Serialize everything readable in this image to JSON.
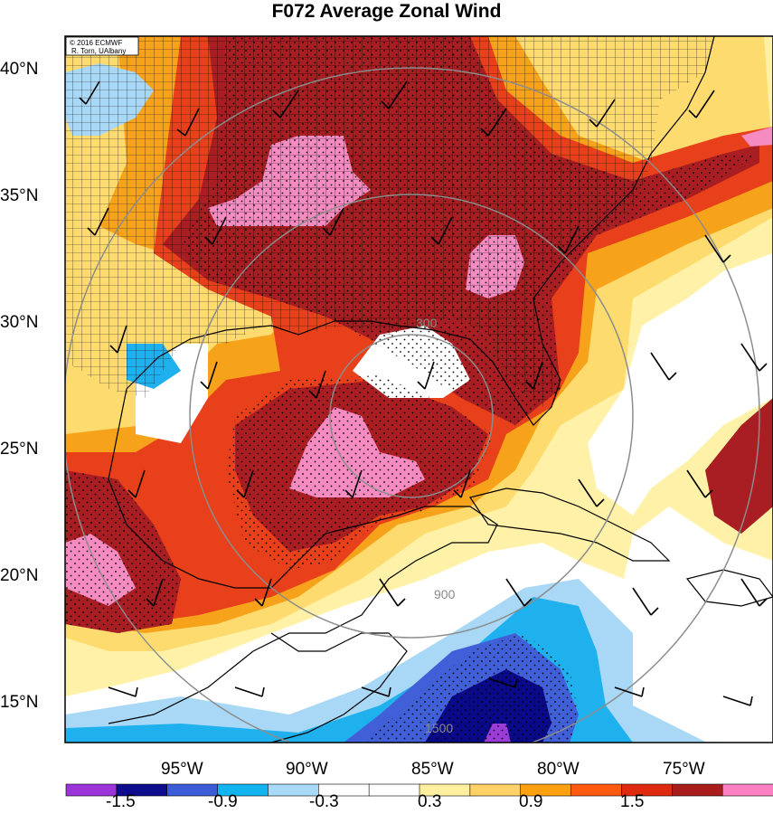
{
  "title": "F072 Average Zonal Wind",
  "credit": {
    "line1": "© 2016 ECMWF",
    "line2": "R. Torn, UAlbany"
  },
  "lat_labels": [
    "40°N",
    "35°N",
    "30°N",
    "25°N",
    "20°N",
    "15°N"
  ],
  "lon_labels": [
    "95°W",
    "90°W",
    "85°W",
    "80°W",
    "75°W"
  ],
  "range_ring_labels": [
    "300",
    "900",
    "1500"
  ],
  "colorbar": {
    "labels": [
      "-1.5",
      "-0.9",
      "-0.3",
      "0.3",
      "0.9",
      "1.5"
    ],
    "colors": [
      "#9b34d9",
      "#0c0c8c",
      "#3c5bd6",
      "#12b4f0",
      "#a8daf7",
      "#ffffff",
      "#ffffff",
      "#fff0a0",
      "#ffd166",
      "#ffa010",
      "#ff5a10",
      "#e02a10",
      "#a81c1c",
      "#ff80c0"
    ]
  },
  "map_colors": {
    "pink": "#f58bc1",
    "darkred": "#a81e22",
    "red": "#e8401a",
    "orange": "#f7a21b",
    "yellow": "#fddb6f",
    "paleyellow": "#fff2a8",
    "white": "#ffffff",
    "paleblue": "#a8d8f5",
    "blue": "#1fb0ee",
    "medblue": "#4160d8",
    "navy": "#0a0a88",
    "purple": "#9b3bd8",
    "ring": "#8c8c8c"
  }
}
